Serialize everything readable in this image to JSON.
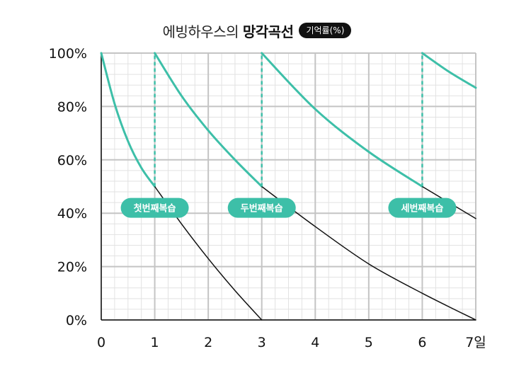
{
  "title": {
    "prefix": "에빙하우스의",
    "bold": "망각곡선",
    "badge": "기억률(%)"
  },
  "chart_data": {
    "type": "line",
    "title": "에빙하우스의 망각곡선",
    "ylabel": "기억률(%)",
    "xlabel": "",
    "xlim": [
      0,
      7
    ],
    "ylim": [
      0,
      100
    ],
    "x_ticks": [
      "0",
      "1",
      "2",
      "3",
      "4",
      "5",
      "6",
      "7일"
    ],
    "y_ticks": [
      "0%",
      "20%",
      "40%",
      "60%",
      "80%",
      "100%"
    ],
    "grid": true,
    "series": [
      {
        "color": "#3dbfa8",
        "highlighted": true,
        "x": [
          0,
          0.25,
          0.5,
          0.75,
          1.0
        ],
        "y": [
          100,
          81,
          67,
          57,
          50
        ]
      },
      {
        "color": "#3dbfa8",
        "highlighted": true,
        "x": [
          1,
          1.5,
          2,
          2.5,
          3
        ],
        "y": [
          100,
          84,
          71,
          60,
          50
        ]
      },
      {
        "color": "#3dbfa8",
        "highlighted": true,
        "x": [
          3,
          4,
          5,
          6
        ],
        "y": [
          100,
          79,
          63,
          50
        ]
      },
      {
        "color": "#3dbfa8",
        "highlighted": true,
        "x": [
          6,
          6.5,
          7
        ],
        "y": [
          100,
          93,
          87
        ]
      },
      {
        "color": "#111111",
        "x": [
          1,
          1.5,
          2,
          2.5,
          3
        ],
        "y": [
          50,
          36,
          23,
          11,
          0
        ]
      },
      {
        "color": "#111111",
        "x": [
          3,
          4,
          5,
          6,
          7
        ],
        "y": [
          50,
          35,
          21,
          10,
          0
        ]
      },
      {
        "color": "#111111",
        "x": [
          6,
          6.5,
          7
        ],
        "y": [
          50,
          44,
          38
        ]
      }
    ],
    "review_lines": [
      {
        "x": 1,
        "y_from": 50,
        "y_to": 100
      },
      {
        "x": 3,
        "y_from": 50,
        "y_to": 100
      },
      {
        "x": 6,
        "y_from": 50,
        "y_to": 100
      }
    ],
    "annotations": [
      {
        "label": "첫번째복습",
        "x": 1,
        "y": 42
      },
      {
        "label": "두번째복습",
        "x": 3,
        "y": 42
      },
      {
        "label": "세번째복습",
        "x": 6,
        "y": 42
      }
    ]
  }
}
